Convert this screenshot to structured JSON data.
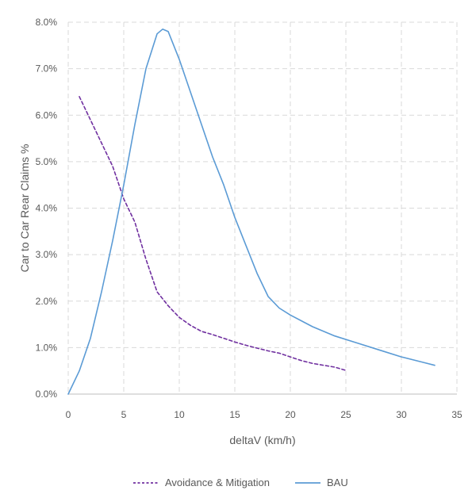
{
  "chart_data": {
    "type": "line",
    "xlabel": "deltaV (km/h)",
    "ylabel": "Car to Car Rear Claims %",
    "xlim": [
      0,
      35
    ],
    "ylim": [
      0,
      8
    ],
    "x_ticks": [
      "0",
      "5",
      "10",
      "15",
      "20",
      "25",
      "30",
      "35"
    ],
    "y_ticks": [
      "0.0%",
      "1.0%",
      "2.0%",
      "3.0%",
      "4.0%",
      "5.0%",
      "6.0%",
      "7.0%",
      "8.0%"
    ],
    "grid": "dashed, both axes",
    "legend": "bottom",
    "series": [
      {
        "name": "Avoidance & Mitigation",
        "color": "#7030a0",
        "style": "dashed",
        "points": [
          [
            1,
            6.4
          ],
          [
            2,
            5.9
          ],
          [
            3,
            5.4
          ],
          [
            4,
            4.9
          ],
          [
            5,
            4.2
          ],
          [
            6,
            3.7
          ],
          [
            7,
            2.9
          ],
          [
            8,
            2.2
          ],
          [
            9,
            1.9
          ],
          [
            10,
            1.65
          ],
          [
            11,
            1.48
          ],
          [
            12,
            1.35
          ],
          [
            13,
            1.28
          ],
          [
            14,
            1.2
          ],
          [
            15,
            1.12
          ],
          [
            16,
            1.05
          ],
          [
            17,
            0.99
          ],
          [
            18,
            0.93
          ],
          [
            19,
            0.88
          ],
          [
            20,
            0.8
          ],
          [
            21,
            0.72
          ],
          [
            22,
            0.66
          ],
          [
            23,
            0.62
          ],
          [
            24,
            0.58
          ],
          [
            25,
            0.51
          ]
        ]
      },
      {
        "name": "BAU",
        "color": "#5b9bd5",
        "style": "solid",
        "points": [
          [
            0,
            0
          ],
          [
            1,
            0.5
          ],
          [
            2,
            1.2
          ],
          [
            3,
            2.2
          ],
          [
            4,
            3.3
          ],
          [
            5,
            4.5
          ],
          [
            6,
            5.8
          ],
          [
            7,
            7.0
          ],
          [
            8,
            7.75
          ],
          [
            8.5,
            7.85
          ],
          [
            9,
            7.8
          ],
          [
            10,
            7.2
          ],
          [
            11,
            6.5
          ],
          [
            12,
            5.8
          ],
          [
            13,
            5.1
          ],
          [
            14,
            4.5
          ],
          [
            15,
            3.8
          ],
          [
            16,
            3.2
          ],
          [
            17,
            2.6
          ],
          [
            18,
            2.1
          ],
          [
            19,
            1.85
          ],
          [
            20,
            1.7
          ],
          [
            22,
            1.45
          ],
          [
            24,
            1.25
          ],
          [
            26,
            1.1
          ],
          [
            28,
            0.95
          ],
          [
            30,
            0.8
          ],
          [
            32,
            0.68
          ],
          [
            33,
            0.62
          ]
        ]
      }
    ]
  }
}
